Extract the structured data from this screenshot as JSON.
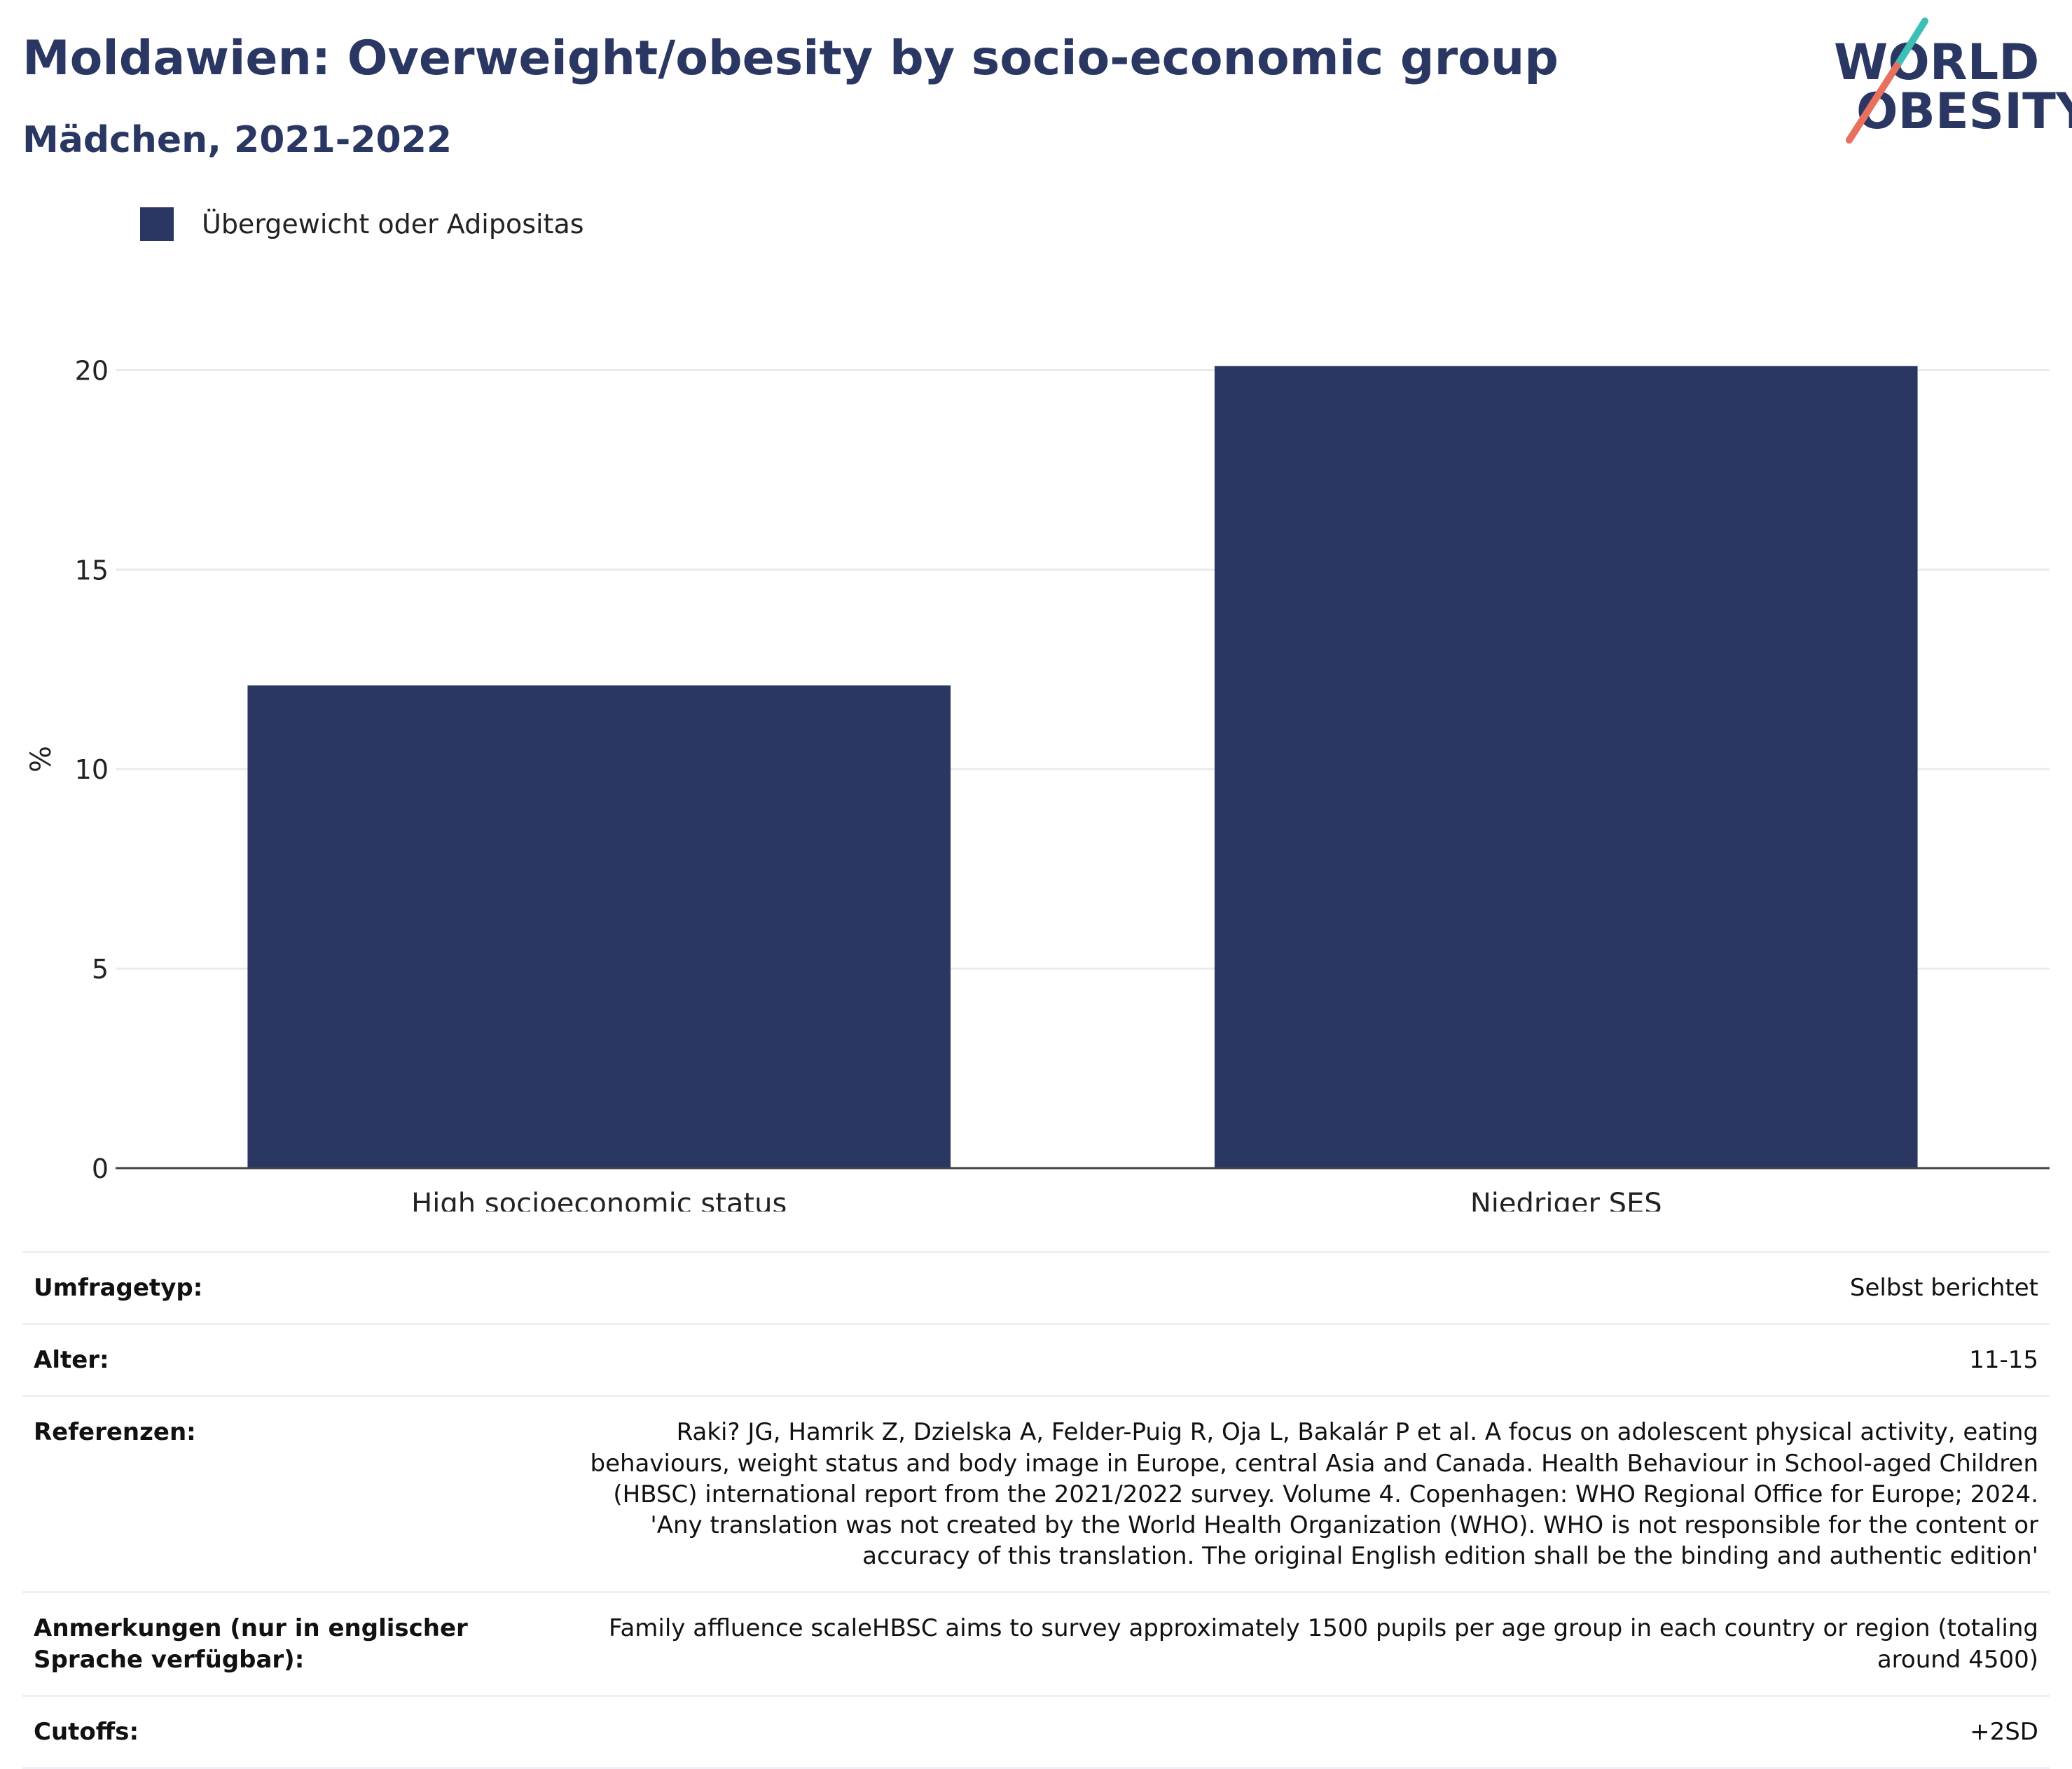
{
  "header": {
    "title": "Moldawien: Overweight/obesity by socio-economic group",
    "subtitle": "Mädchen, 2021-2022"
  },
  "logo": {
    "line1": "WORLD",
    "line2": "OBESITY",
    "accent_teal": "#3cbfb4",
    "accent_coral": "#e8705f"
  },
  "colors": {
    "bar": "#2b3763",
    "grid": "#e8ebf0",
    "axis": "#444444"
  },
  "legend": {
    "label": "Übergewicht oder Adipositas"
  },
  "chart_data": {
    "type": "bar",
    "categories": [
      "High socioeconomic status",
      "Niedriger SES"
    ],
    "series": [
      {
        "name": "Übergewicht oder Adipositas",
        "values": [
          12.1,
          20.1
        ]
      }
    ],
    "ylabel": "%",
    "ylim": [
      0,
      20.5
    ],
    "yticks": [
      0,
      5,
      10,
      15,
      20
    ],
    "grid": true,
    "legend_position": "top-left"
  },
  "info": {
    "rows": [
      {
        "key": "Umfragetyp:",
        "value": "Selbst berichtet"
      },
      {
        "key": "Alter:",
        "value": "11-15"
      },
      {
        "key": "Referenzen:",
        "value": "Raki? JG, Hamrik Z, Dzielska A, Felder-Puig R, Oja L, Bakalár P et al. A focus on adolescent physical activity, eating behaviours, weight status and body image in Europe, central Asia and Canada. Health Behaviour in School-aged Children (HBSC) international report from the 2021/2022 survey. Volume 4. Copenhagen: WHO Regional Office for Europe; 2024. 'Any translation was not created by the World Health Organization (WHO). WHO is not responsible for the content or accuracy of this translation. The original English edition shall be the binding and authentic edition'"
      },
      {
        "key": "Anmerkungen (nur in englischer Sprache verfügbar):",
        "value": "Family affluence scaleHBSC aims to survey approximately 1500 pupils per age group in each country or region (totaling around 4500)"
      },
      {
        "key": "Cutoffs:",
        "value": "+2SD"
      }
    ]
  }
}
